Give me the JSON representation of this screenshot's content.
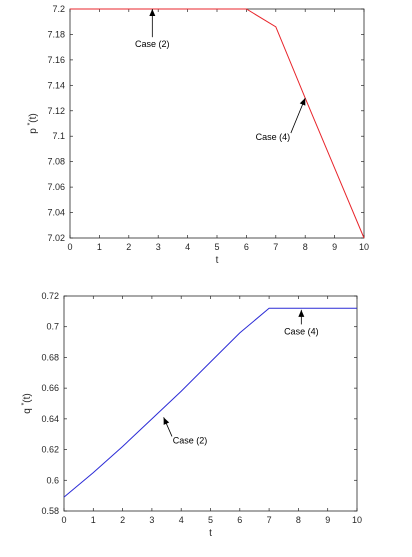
{
  "chart_data": [
    {
      "type": "line",
      "xlabel": "t",
      "ylabel": "p",
      "ylabel_superscript": "*",
      "ylabel_suffix": "(t)",
      "xlim": [
        0,
        10
      ],
      "ylim": [
        7.02,
        7.2
      ],
      "xticks": [
        0,
        1,
        2,
        3,
        4,
        5,
        6,
        7,
        8,
        9,
        10
      ],
      "yticks": [
        7.02,
        7.04,
        7.06,
        7.08,
        7.1,
        7.12,
        7.14,
        7.16,
        7.18,
        7.2
      ],
      "grid": false,
      "series": [
        {
          "color": "#e8252b",
          "x": [
            0,
            1,
            2,
            3,
            4,
            5,
            6,
            7,
            8,
            9,
            10
          ],
          "y": [
            7.2,
            7.2,
            7.2,
            7.2,
            7.2,
            7.2,
            7.2,
            7.186,
            7.13,
            7.075,
            7.02
          ]
        }
      ],
      "annotations": [
        {
          "text": "Case (2)",
          "text_at": [
            2.8,
            7.17
          ],
          "arrow_to": [
            2.8,
            7.2
          ]
        },
        {
          "text": "Case (4)",
          "text_at": [
            6.9,
            7.097
          ],
          "arrow_to": [
            8.0,
            7.13
          ]
        }
      ]
    },
    {
      "type": "line",
      "xlabel": "t",
      "ylabel": "q",
      "ylabel_superscript": "*",
      "ylabel_suffix": "(t)",
      "xlim": [
        0,
        10
      ],
      "ylim": [
        0.58,
        0.72
      ],
      "xticks": [
        0,
        1,
        2,
        3,
        4,
        5,
        6,
        7,
        8,
        9,
        10
      ],
      "yticks": [
        0.58,
        0.6,
        0.62,
        0.64,
        0.66,
        0.68,
        0.7,
        0.72
      ],
      "grid": false,
      "series": [
        {
          "color": "#2b2bd6",
          "x": [
            0,
            1,
            2,
            3,
            4,
            5,
            6,
            7,
            8,
            9,
            10
          ],
          "y": [
            0.589,
            0.605,
            0.622,
            0.64,
            0.658,
            0.677,
            0.696,
            0.712,
            0.712,
            0.712,
            0.712
          ]
        }
      ],
      "annotations": [
        {
          "text": "Case (2)",
          "text_at": [
            4.3,
            0.624
          ],
          "arrow_to": [
            3.4,
            0.641
          ]
        },
        {
          "text": "Case (4)",
          "text_at": [
            8.1,
            0.695
          ],
          "arrow_to": [
            8.1,
            0.711
          ]
        }
      ]
    }
  ]
}
